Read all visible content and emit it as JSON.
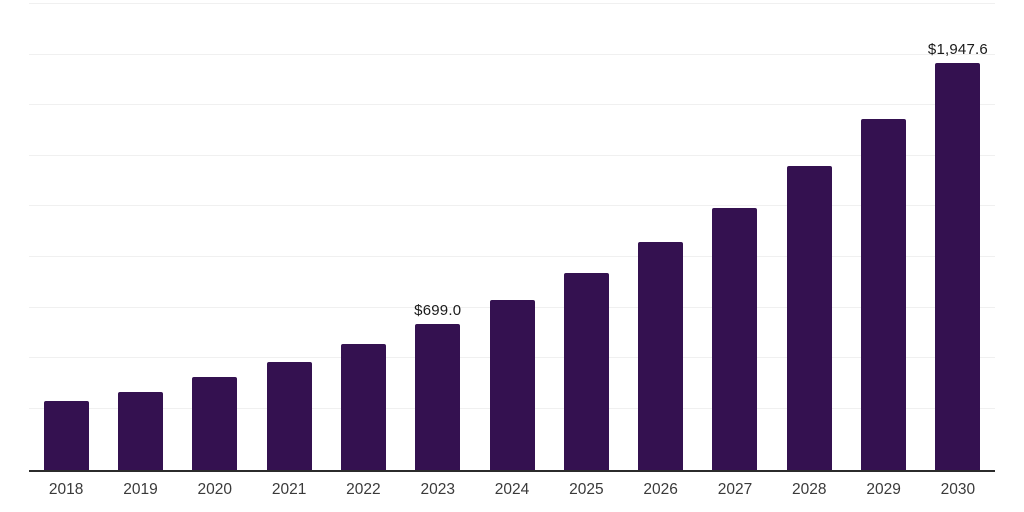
{
  "chart_data": {
    "type": "bar",
    "title": "",
    "xlabel": "",
    "ylabel": "",
    "categories": [
      "2018",
      "2019",
      "2020",
      "2021",
      "2022",
      "2023",
      "2024",
      "2025",
      "2026",
      "2027",
      "2028",
      "2029",
      "2030"
    ],
    "values": [
      330,
      372,
      444,
      516,
      605,
      699.0,
      812,
      943,
      1090,
      1254,
      1455,
      1679,
      1947.6
    ],
    "data_labels": [
      "",
      "",
      "",
      "",
      "",
      "$699.0",
      "",
      "",
      "",
      "",
      "",
      "",
      "$1,947.6"
    ],
    "ylim": [
      0,
      2250
    ],
    "grid": true,
    "gridline_count": 9,
    "legend": "none",
    "colors": {
      "bar": "#341150",
      "axis": "#2b2b2b",
      "gridline": "#f0f0f0",
      "tick_label": "#3a3a3a",
      "data_label": "#1a1a1a",
      "background": "#ffffff"
    }
  }
}
